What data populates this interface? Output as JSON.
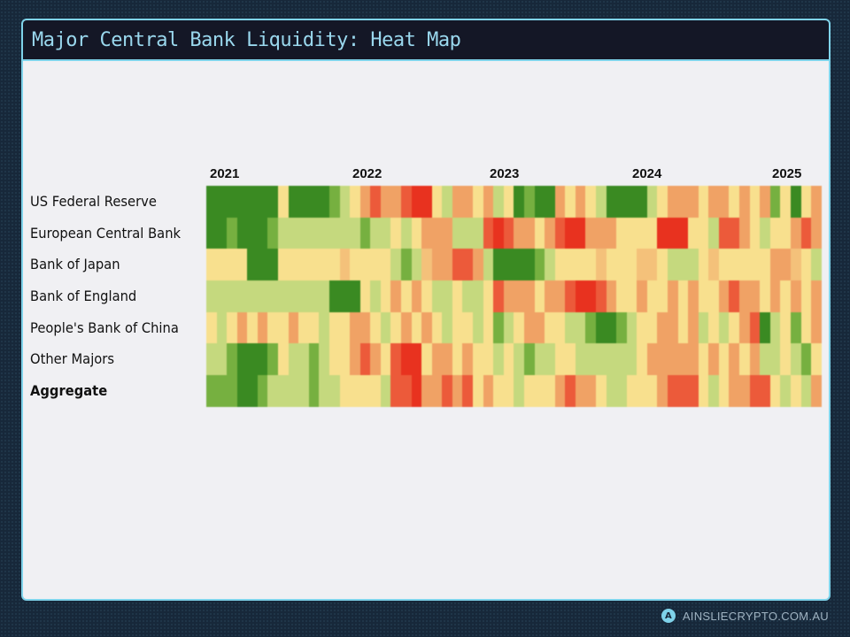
{
  "header": {
    "title": "Major Central Bank Liquidity: Heat Map"
  },
  "footer": {
    "site": "AINSLIECRYPTO.COM.AU"
  },
  "chart_data": {
    "type": "heatmap",
    "title": "",
    "x_tick_labels": [
      "2021",
      "2022",
      "2023",
      "2024",
      "2025"
    ],
    "x_range": [
      "2021",
      "2025"
    ],
    "rows": [
      "US Federal Reserve",
      "European Central Bank",
      "Bank of Japan",
      "Bank of England",
      "People's Bank of China",
      "Other Majors",
      "Aggregate"
    ],
    "value_scale": {
      "min": -3,
      "max": 3,
      "low_color": "#e8321f",
      "mid_color": "#f8e08e",
      "high_color": "#3a8a22"
    },
    "values": [
      [
        3,
        3,
        3,
        3,
        3,
        3,
        3,
        0,
        3,
        3,
        3,
        3,
        2,
        1,
        0,
        -1,
        -2,
        -1,
        -1,
        -2,
        -3,
        -3,
        0,
        1,
        -1,
        -1,
        0,
        -1,
        1,
        0,
        3,
        2,
        3,
        3,
        -1,
        0,
        -1,
        0,
        1,
        3,
        3,
        3,
        3,
        1,
        0,
        -1,
        -1,
        -1,
        0,
        -1,
        -1,
        0,
        -1,
        0,
        -1,
        2,
        0,
        3,
        0,
        -1
      ],
      [
        3,
        3,
        2,
        3,
        3,
        3,
        2,
        1,
        1,
        1,
        1,
        1,
        1,
        1,
        1,
        2,
        1,
        1,
        0,
        1,
        0,
        -1,
        -1,
        -1,
        1,
        1,
        1,
        -2,
        -3,
        -2,
        -1,
        -1,
        0,
        -1,
        -2,
        -3,
        -3,
        -1,
        -1,
        -1,
        0,
        0,
        0,
        0,
        -3,
        -3,
        -3,
        0,
        0,
        1,
        -2,
        -2,
        -1,
        0,
        1,
        0,
        0,
        -1,
        -2,
        -1
      ],
      [
        0,
        0,
        0,
        0,
        3,
        3,
        3,
        0,
        0,
        0,
        0,
        0,
        0,
        -0.5,
        0,
        0,
        0,
        0,
        1,
        2,
        1,
        -0.5,
        -1,
        -1,
        -2,
        -2,
        -1,
        1,
        3,
        3,
        3,
        3,
        2,
        1,
        0,
        0,
        0,
        0,
        -0.5,
        0,
        0,
        0,
        -0.5,
        -0.5,
        0,
        1,
        1,
        1,
        0,
        -0.5,
        0,
        0,
        0,
        0,
        0,
        -1,
        -1,
        -0.5,
        0,
        1
      ],
      [
        1,
        1,
        1,
        1,
        1,
        1,
        1,
        1,
        1,
        1,
        1,
        1,
        3,
        3,
        3,
        0,
        1,
        0,
        -1,
        0,
        -1,
        0,
        1,
        1,
        0,
        1,
        1,
        0,
        -2,
        -1,
        -1,
        -1,
        0,
        -1,
        -1,
        -2,
        -3,
        -3,
        -2,
        -1,
        0,
        0,
        -1,
        0,
        0,
        -1,
        0,
        -1,
        0,
        0,
        -1,
        -2,
        -1,
        -1,
        0,
        -1,
        0,
        -1,
        0,
        -1
      ],
      [
        0,
        1,
        0,
        -1,
        0,
        -1,
        0,
        0,
        -1,
        0,
        0,
        1,
        0,
        0,
        -1,
        -1,
        0,
        1,
        0,
        -1,
        0,
        -1,
        0,
        1,
        0,
        0,
        1,
        0,
        2,
        1,
        0,
        -1,
        -1,
        0,
        0,
        1,
        1,
        2,
        3,
        3,
        2,
        1,
        0,
        0,
        -1,
        -1,
        0,
        -1,
        1,
        0,
        1,
        0,
        -1,
        -2,
        3,
        1,
        0,
        2,
        0,
        -1
      ],
      [
        1,
        1,
        2,
        3,
        3,
        3,
        2,
        0,
        1,
        1,
        2,
        1,
        0,
        0,
        -1,
        -2,
        -1,
        0,
        -2,
        -3,
        -3,
        0,
        -1,
        -1,
        0,
        -1,
        0,
        0,
        1,
        0,
        1,
        2,
        1,
        1,
        0,
        0,
        1,
        1,
        1,
        1,
        1,
        1,
        0,
        -1,
        -1,
        -1,
        -1,
        -1,
        0,
        -1,
        0,
        -1,
        0,
        -1,
        1,
        1,
        0,
        1,
        2,
        0
      ],
      [
        2,
        2,
        2,
        3,
        3,
        2,
        1,
        1,
        1,
        1,
        2,
        1,
        1,
        0,
        0,
        0,
        0,
        1,
        -2,
        -2,
        -3,
        -1,
        -1,
        -2,
        -1,
        -2,
        0,
        -1,
        0,
        0,
        1,
        0,
        0,
        0,
        -1,
        -2,
        -1,
        -1,
        0,
        1,
        1,
        0,
        0,
        0,
        -1,
        -2,
        -2,
        -2,
        0,
        1,
        0,
        -1,
        -1,
        -2,
        -2,
        0,
        1,
        0,
        1,
        -1
      ]
    ]
  }
}
